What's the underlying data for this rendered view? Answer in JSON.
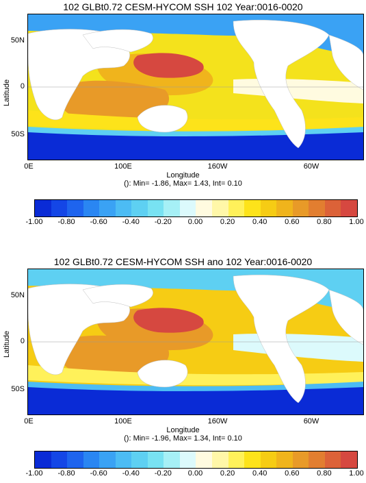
{
  "panels": [
    {
      "title": "102 GLBt0.72 CESM-HYCOM SSH 102 Year:0016-0020",
      "ylabel": "Latitude",
      "xlabel": "Longitude",
      "stats": "(): Min= -1.86, Max= 1.43, Int= 0.10",
      "yticks": [
        "50N",
        "0",
        "50S"
      ],
      "xticks": [
        "0E",
        "100E",
        "160W",
        "60W"
      ]
    },
    {
      "title": "102 GLBt0.72 CESM-HYCOM SSH ano 102 Year:0016-0020",
      "ylabel": "Latitude",
      "xlabel": "Longitude",
      "stats": "(): Min= -1.96, Max= 1.34, Int= 0.10",
      "yticks": [
        "50N",
        "0",
        "50S"
      ],
      "xticks": [
        "0E",
        "100E",
        "160W",
        "60W"
      ]
    }
  ],
  "colorbar": {
    "labels": [
      "-1.00",
      "-0.80",
      "-0.60",
      "-0.40",
      "-0.20",
      "0.00",
      "0.20",
      "0.40",
      "0.60",
      "0.80",
      "1.00"
    ],
    "colors": [
      "#0a2bd6",
      "#1446e6",
      "#1e64ee",
      "#2a86f2",
      "#3aa2f4",
      "#4cbcf4",
      "#5ed0f2",
      "#78e2f2",
      "#a6f0f6",
      "#dcfafc",
      "#fffbe0",
      "#fff7a8",
      "#fff15a",
      "#fde31a",
      "#f6cc14",
      "#f0b41c",
      "#e89a28",
      "#e27e30",
      "#dc6238",
      "#d64840"
    ],
    "land_color": "#ffffff"
  }
}
